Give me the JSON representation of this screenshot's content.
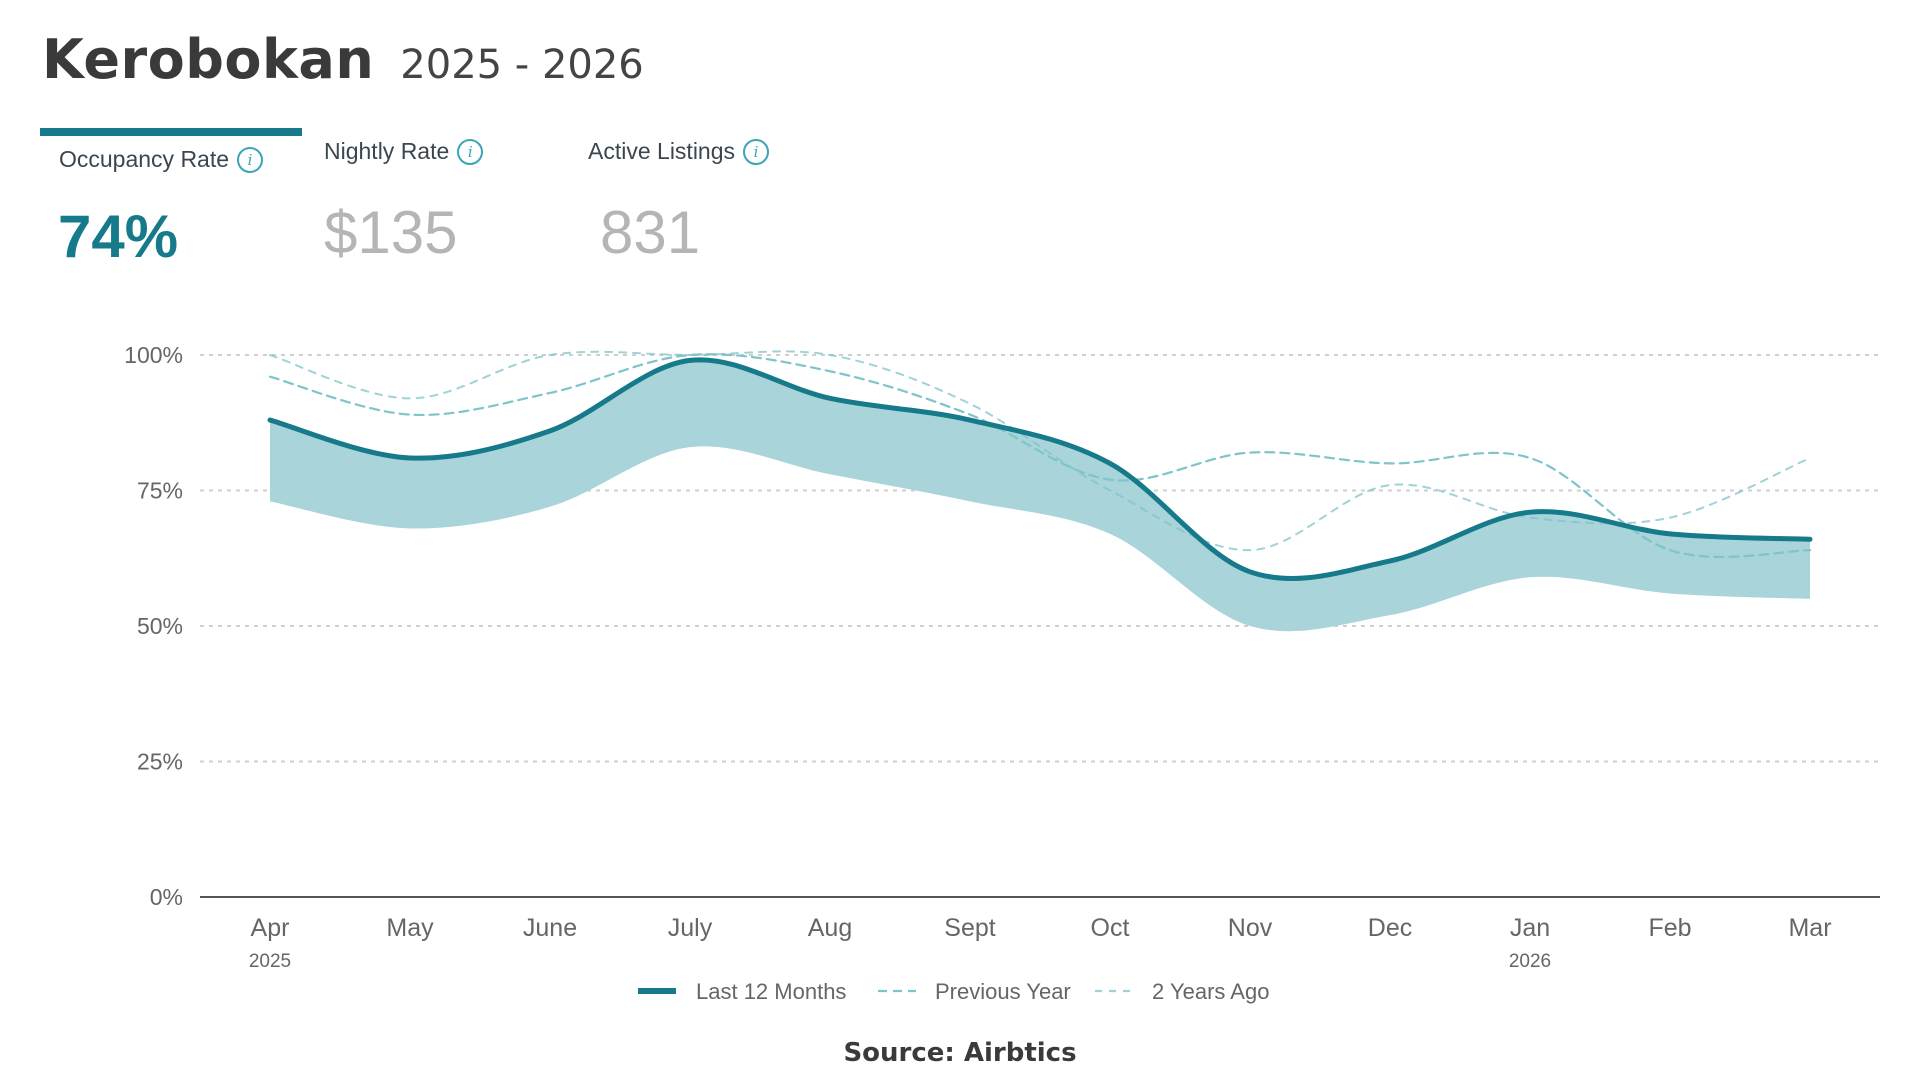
{
  "header": {
    "place": "Kerobokan",
    "years": "2025 - 2026"
  },
  "tabs": [
    {
      "label": "Occupancy Rate",
      "value": "74%",
      "active": true,
      "info_icon": "info-icon"
    },
    {
      "label": "Nightly Rate",
      "value": "$135",
      "active": false,
      "info_icon": "info-icon"
    },
    {
      "label": "Active Listings",
      "value": "831",
      "active": false,
      "info_icon": "info-icon"
    }
  ],
  "colors": {
    "accent": "#167a8b",
    "band": "#a9d4da",
    "dashed": "#7fc4ca",
    "grid": "#cfcfcf",
    "inactive_value": "#b5b5b5"
  },
  "chart_data": {
    "type": "line",
    "categories": [
      "Apr",
      "May",
      "June",
      "July",
      "Aug",
      "Sept",
      "Oct",
      "Nov",
      "Dec",
      "Jan",
      "Feb",
      "Mar"
    ],
    "year_labels": {
      "Apr": "2025",
      "Jan": "2026"
    },
    "ylim": [
      0,
      100
    ],
    "yticks": [
      "0%",
      "25%",
      "50%",
      "75%",
      "100%"
    ],
    "grid": true,
    "legend_position": "bottom-center",
    "series": [
      {
        "name": "Last 12 Months",
        "style": "solid",
        "values": [
          88,
          81,
          86,
          99,
          92,
          88,
          80,
          60,
          62,
          71,
          67,
          66
        ]
      },
      {
        "name": "Previous Year",
        "style": "dashed",
        "values": [
          96,
          89,
          93,
          100,
          97,
          89,
          77,
          82,
          80,
          81,
          64,
          64
        ]
      },
      {
        "name": "2 Years Ago",
        "style": "dashed-light",
        "values": [
          100,
          92,
          100,
          100,
          100,
          91,
          75,
          64,
          76,
          70,
          70,
          81
        ]
      }
    ],
    "band": {
      "upper": [
        88,
        81,
        86,
        99,
        92,
        88,
        80,
        60,
        62,
        71,
        67,
        66
      ],
      "lower": [
        73,
        68,
        72,
        83,
        78,
        73,
        67,
        50,
        52,
        59,
        56,
        55
      ]
    }
  },
  "footer": {
    "source": "Source: Airbtics"
  }
}
